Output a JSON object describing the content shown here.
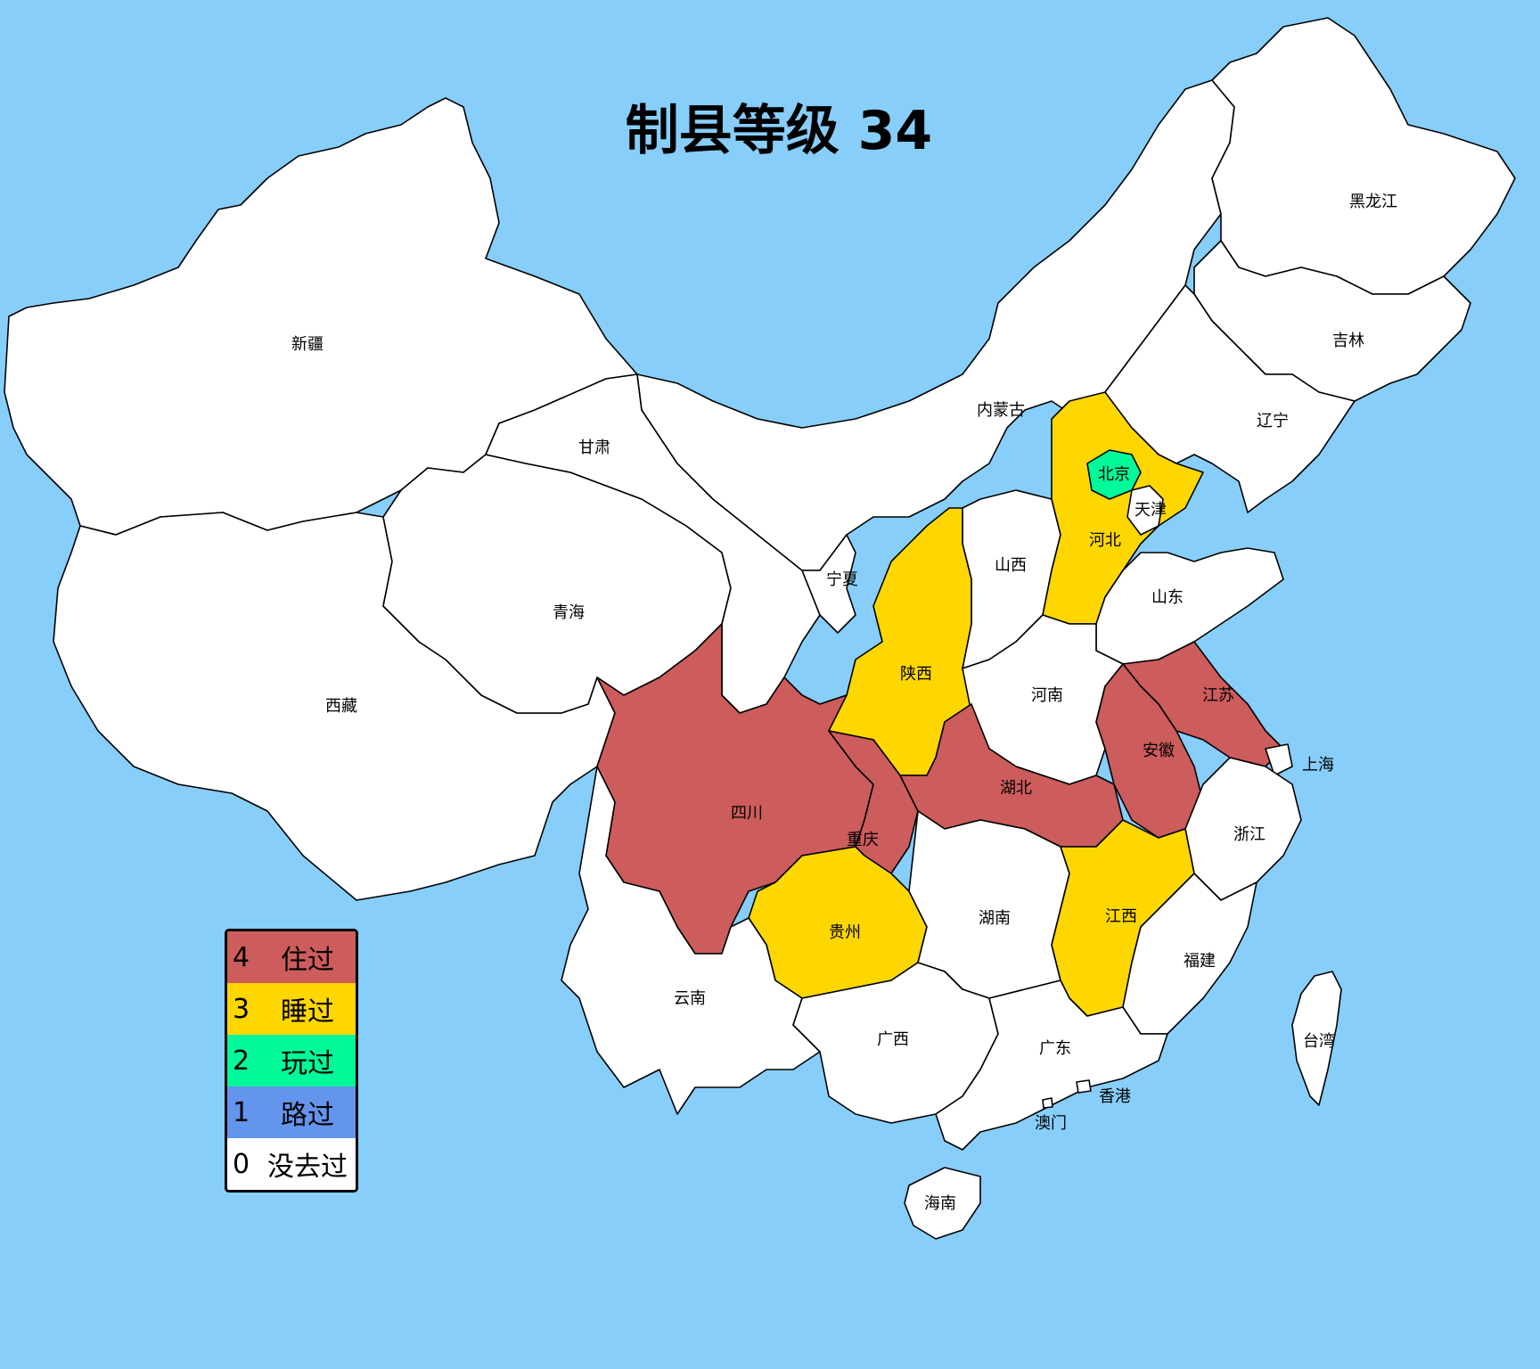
{
  "title": "制县等级 34",
  "legend": [
    {
      "level": 4,
      "label": "住过",
      "color": "#cd5c5c"
    },
    {
      "level": 3,
      "label": "睡过",
      "color": "#ffd700"
    },
    {
      "level": 2,
      "label": "玩过",
      "color": "#00fa9a"
    },
    {
      "level": 1,
      "label": "路过",
      "color": "#6495ed"
    },
    {
      "level": 0,
      "label": "没去过",
      "color": "#ffffff"
    }
  ],
  "colors": {
    "sea": "#87cefa",
    "border": "#000000"
  },
  "provinces": {
    "xinjiang": {
      "name": "新疆",
      "level": 0
    },
    "xizang": {
      "name": "西藏",
      "level": 0
    },
    "qinghai": {
      "name": "青海",
      "level": 0
    },
    "gansu": {
      "name": "甘肃",
      "level": 0
    },
    "neimenggu": {
      "name": "内蒙古",
      "level": 0
    },
    "heilongjiang": {
      "name": "黑龙江",
      "level": 0
    },
    "jilin": {
      "name": "吉林",
      "level": 0
    },
    "liaoning": {
      "name": "辽宁",
      "level": 0
    },
    "ningxia": {
      "name": "宁夏",
      "level": 0
    },
    "shanxi": {
      "name": "山西",
      "level": 0
    },
    "hebei": {
      "name": "河北",
      "level": 3
    },
    "beijing": {
      "name": "北京",
      "level": 2
    },
    "tianjin": {
      "name": "天津",
      "level": 0
    },
    "shandong": {
      "name": "山东",
      "level": 0
    },
    "shaanxi": {
      "name": "陕西",
      "level": 3
    },
    "henan": {
      "name": "河南",
      "level": 0
    },
    "jiangsu": {
      "name": "江苏",
      "level": 4
    },
    "anhui": {
      "name": "安徽",
      "level": 4
    },
    "shanghai": {
      "name": "上海",
      "level": 0
    },
    "sichuan": {
      "name": "四川",
      "level": 4
    },
    "chongqing": {
      "name": "重庆",
      "level": 4
    },
    "hubei": {
      "name": "湖北",
      "level": 4
    },
    "zhejiang": {
      "name": "浙江",
      "level": 0
    },
    "guizhou": {
      "name": "贵州",
      "level": 3
    },
    "hunan": {
      "name": "湖南",
      "level": 0
    },
    "jiangxi": {
      "name": "江西",
      "level": 3
    },
    "fujian": {
      "name": "福建",
      "level": 0
    },
    "yunnan": {
      "name": "云南",
      "level": 0
    },
    "guangxi": {
      "name": "广西",
      "level": 0
    },
    "guangdong": {
      "name": "广东",
      "level": 0
    },
    "taiwan": {
      "name": "台湾",
      "level": 0
    },
    "xianggang": {
      "name": "香港",
      "level": 0
    },
    "aomen": {
      "name": "澳门",
      "level": 0
    },
    "hainan": {
      "name": "海南",
      "level": 0
    }
  }
}
